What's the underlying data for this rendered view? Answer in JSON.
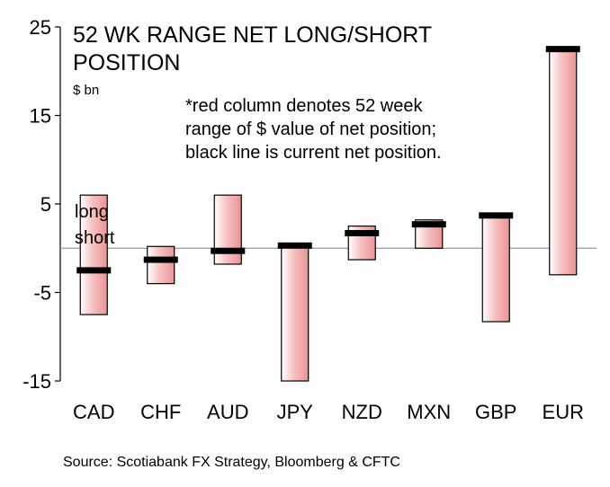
{
  "chart_data": {
    "type": "bar",
    "title": [
      "52 WK RANGE NET LONG/SHORT",
      "POSITION"
    ],
    "unit": "$ bn",
    "note": [
      "*red column denotes 52 week",
      "range of $ value of net position;",
      "black line is current net position."
    ],
    "direction_labels": [
      "long",
      "short"
    ],
    "categories": [
      "CAD",
      "CHF",
      "AUD",
      "JPY",
      "NZD",
      "MXN",
      "GBP",
      "EUR"
    ],
    "range_low": [
      -7.5,
      -4.0,
      -1.8,
      -15.0,
      -1.3,
      0.0,
      -8.3,
      -3.0
    ],
    "range_high": [
      6.0,
      0.2,
      6.0,
      0.3,
      2.5,
      3.2,
      3.8,
      22.5
    ],
    "current": [
      -2.5,
      -1.3,
      -0.3,
      0.3,
      1.7,
      2.7,
      3.7,
      22.5
    ],
    "ylim": [
      -15,
      25
    ],
    "yticks": [
      25,
      15,
      5,
      -5,
      -15
    ],
    "range_color": "#f2a8a8",
    "current_color": "#000000",
    "grid": false
  },
  "source": "Source: Scotiabank FX Strategy, Bloomberg & CFTC"
}
